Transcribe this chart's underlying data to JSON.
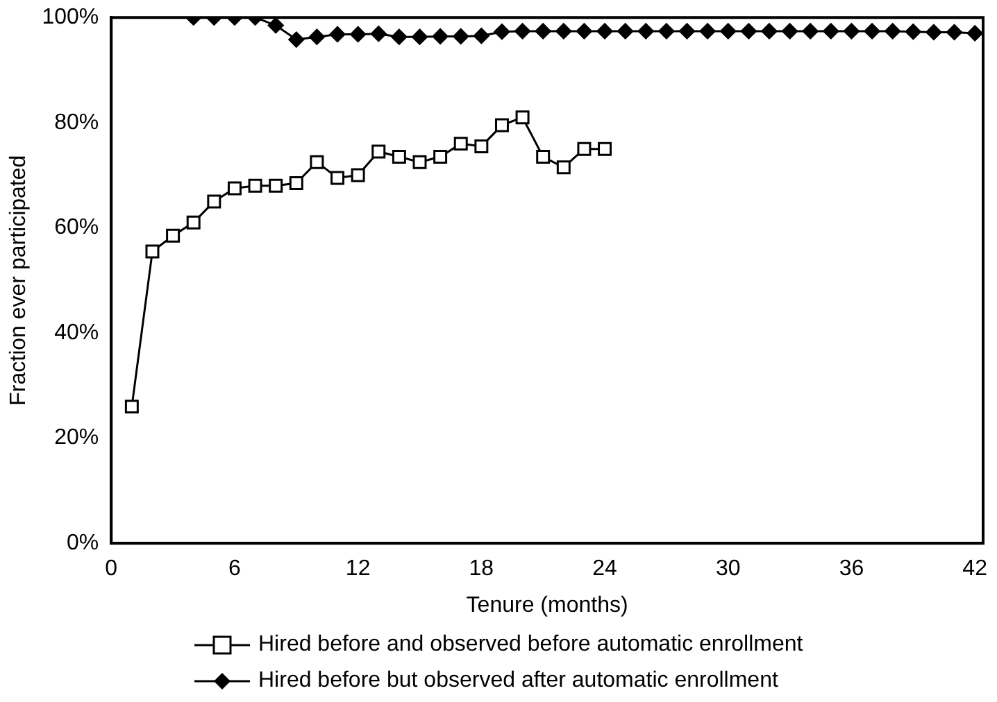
{
  "chart_data": {
    "type": "line",
    "xlabel": "Tenure (months)",
    "ylabel": "Fraction ever participated",
    "xlim": [
      0,
      42.4
    ],
    "xticks": [
      0,
      6,
      12,
      18,
      24,
      30,
      36,
      42
    ],
    "ylim": [
      0,
      100
    ],
    "yticks": [
      {
        "value": 0,
        "label": "0%"
      },
      {
        "value": 20,
        "label": "20%"
      },
      {
        "value": 40,
        "label": "40%"
      },
      {
        "value": 60,
        "label": "60%"
      },
      {
        "value": 80,
        "label": "80%"
      },
      {
        "value": 100,
        "label": "100%"
      }
    ],
    "grid": false,
    "legend": "bottom",
    "series": [
      {
        "name": "Hired before and observed before automatic enrollment",
        "color": "#000000",
        "marker": "square",
        "x": [
          1,
          2,
          3,
          4,
          5,
          6,
          7,
          8,
          9,
          10,
          11,
          12,
          13,
          14,
          15,
          16,
          17,
          18,
          19,
          20,
          21,
          22,
          23,
          24
        ],
        "values": [
          26,
          55.5,
          58.5,
          61,
          65,
          67.5,
          68,
          68,
          68.5,
          72.5,
          69.5,
          70,
          74.5,
          73.5,
          72.5,
          73.5,
          76,
          75.5,
          79.5,
          81,
          73.5,
          71.5,
          75,
          75
        ]
      },
      {
        "name": "Hired before but observed after automatic enrollment",
        "color": "#000000",
        "marker": "diamond",
        "x": [
          4,
          5,
          6,
          7,
          8,
          9,
          10,
          11,
          12,
          13,
          14,
          15,
          16,
          17,
          18,
          19,
          20,
          21,
          22,
          23,
          24,
          25,
          26,
          27,
          28,
          29,
          30,
          31,
          32,
          33,
          34,
          35,
          36,
          37,
          38,
          39,
          40,
          41,
          42
        ],
        "values": [
          100,
          100,
          100,
          100,
          98.5,
          95.8,
          96.3,
          96.8,
          96.8,
          96.9,
          96.3,
          96.3,
          96.4,
          96.4,
          96.5,
          97.3,
          97.4,
          97.4,
          97.4,
          97.4,
          97.4,
          97.4,
          97.4,
          97.4,
          97.4,
          97.4,
          97.4,
          97.4,
          97.4,
          97.4,
          97.4,
          97.4,
          97.4,
          97.4,
          97.4,
          97.3,
          97.2,
          97.2,
          97
        ]
      }
    ]
  }
}
